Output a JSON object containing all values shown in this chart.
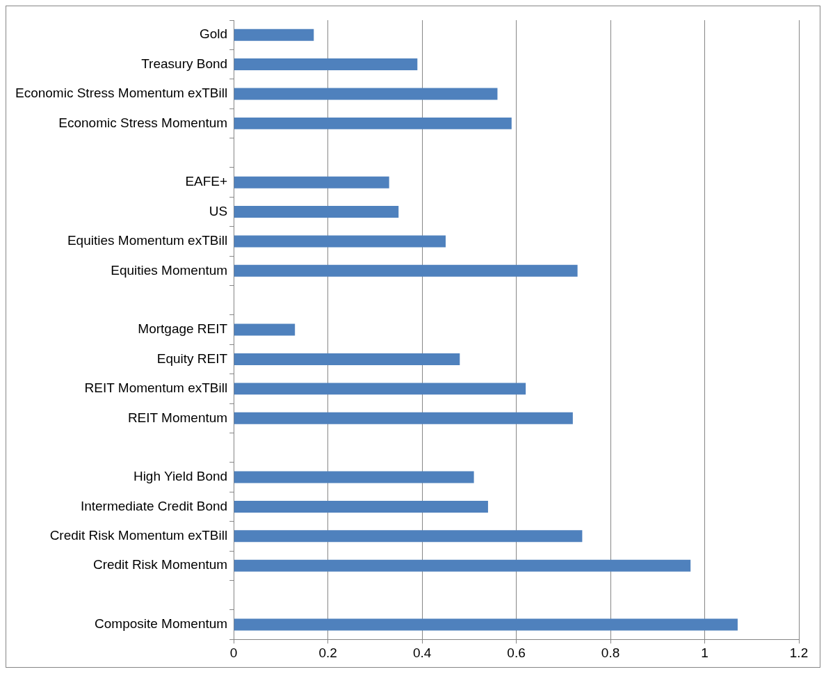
{
  "chart_data": {
    "type": "bar",
    "orientation": "horizontal",
    "categories": [
      "Gold",
      "Treasury Bond",
      "Economic Stress Momentum exTBill",
      "Economic Stress Momentum",
      null,
      "EAFE+",
      "US",
      "Equities Momentum exTBill",
      "Equities Momentum",
      null,
      "Mortgage REIT",
      "Equity REIT",
      "REIT Momentum exTBill",
      "REIT Momentum",
      null,
      "High Yield Bond",
      "Intermediate Credit Bond",
      "Credit Risk Momentum exTBill",
      "Credit Risk Momentum",
      null,
      "Composite Momentum"
    ],
    "values": [
      0.17,
      0.39,
      0.56,
      0.59,
      null,
      0.33,
      0.35,
      0.45,
      0.73,
      null,
      0.13,
      0.48,
      0.62,
      0.72,
      null,
      0.51,
      0.54,
      0.74,
      0.97,
      null,
      1.07
    ],
    "color": "#4f81bd",
    "xlim": [
      0,
      1.2
    ],
    "xticks": [
      0,
      0.2,
      0.4,
      0.6,
      0.8,
      1,
      1.2
    ],
    "grid": "x",
    "legend": false
  }
}
